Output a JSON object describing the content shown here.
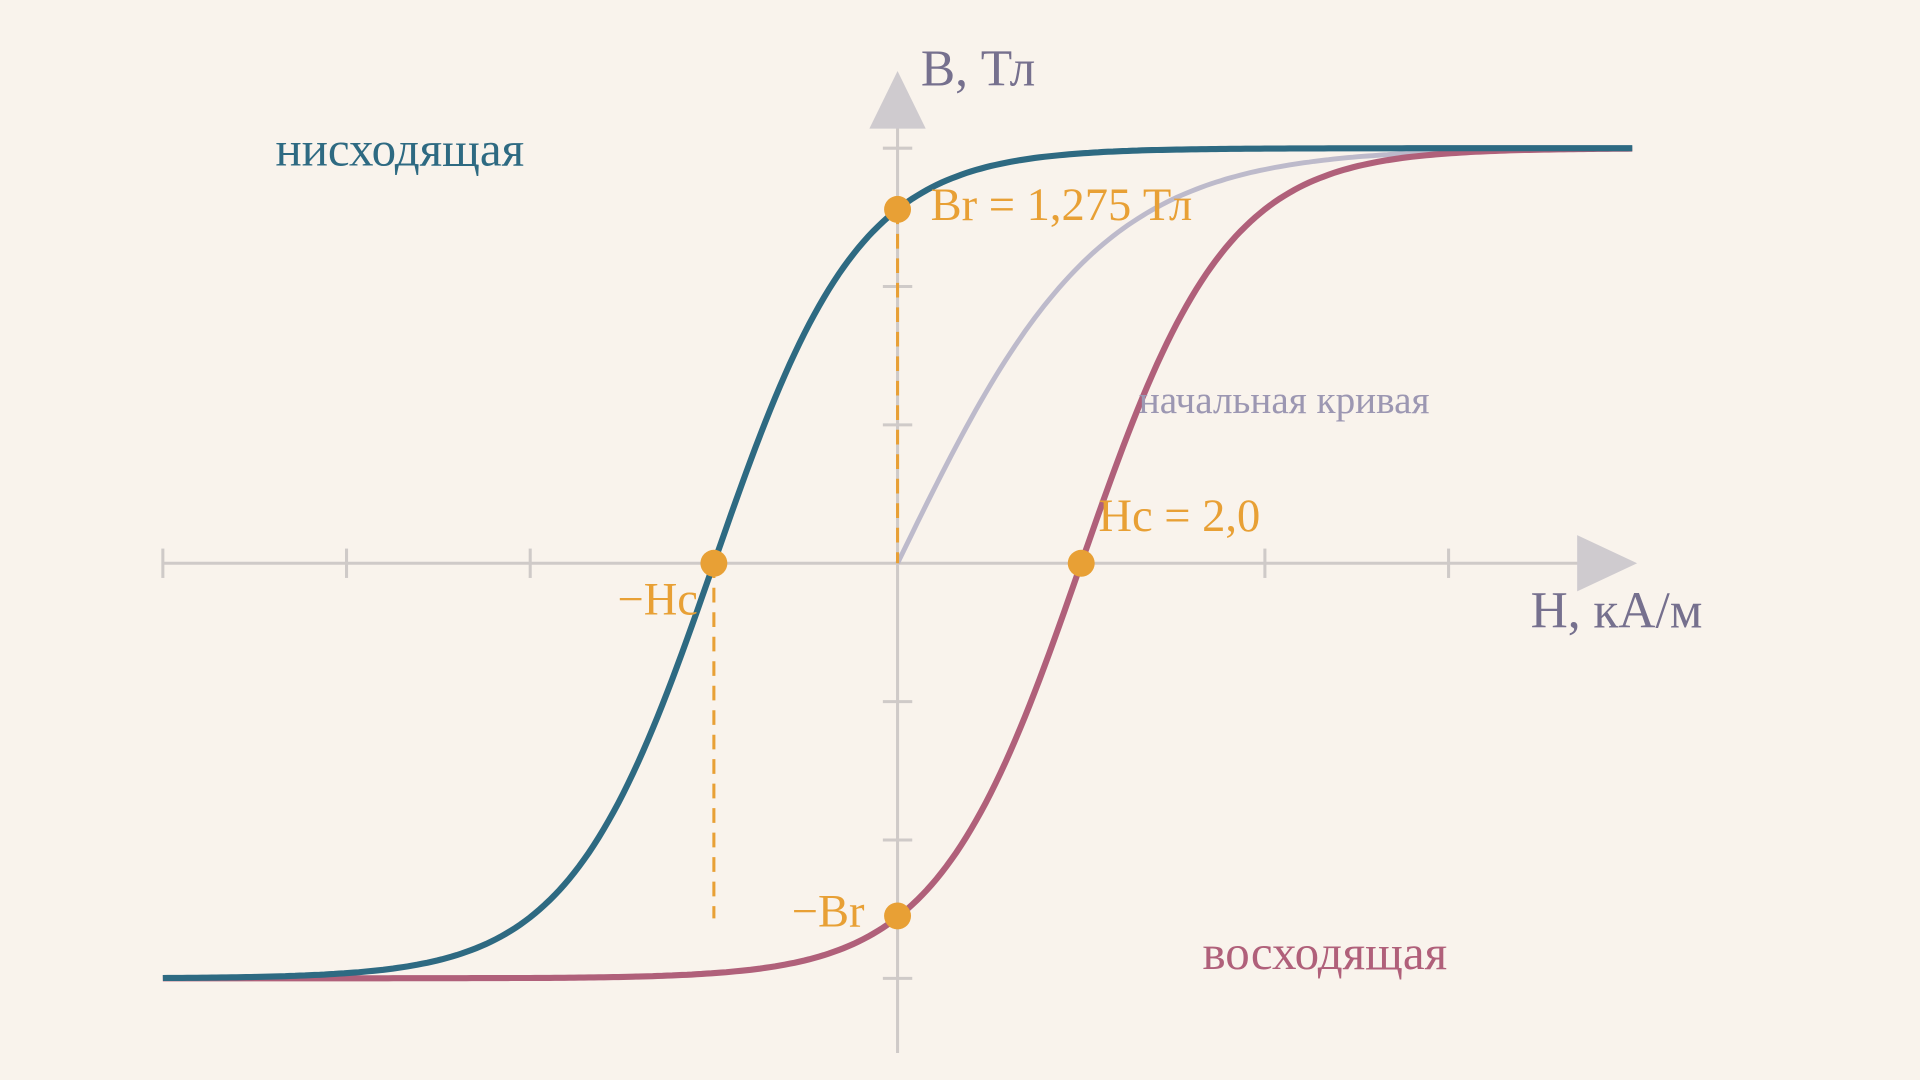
{
  "axes": {
    "y_label": "B, Тл",
    "x_label": "H, кА/м"
  },
  "curves": {
    "descending": "нисходящая",
    "ascending": "восходящая",
    "initial": "начальная кривая"
  },
  "points": {
    "br": "Br = 1,275 Тл",
    "hc": "Hc = 2,0",
    "neg_hc": "−Hc",
    "neg_br": "−Br"
  }
}
